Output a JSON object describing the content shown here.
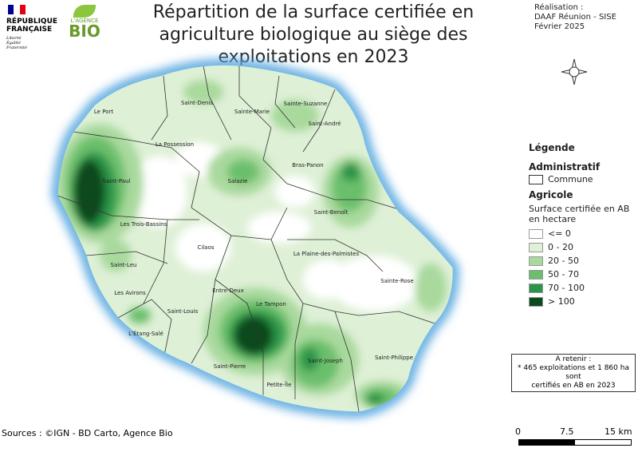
{
  "header": {
    "logo_rf": [
      "RÉPUBLIQUE",
      "FRANÇAISE"
    ],
    "motto": [
      "Liberté",
      "Égalité",
      "Fraternité"
    ],
    "logo_bio": [
      "L'AGENCE",
      "BIO"
    ],
    "title": "Répartition de la surface certifiée en agriculture biologique au siège des exploitations en 2023",
    "credits": [
      "Réalisation :",
      "DAAF Réunion - SISE",
      "Février 2025"
    ]
  },
  "map": {
    "communes": [
      "Saint-Denis",
      "Sainte-Marie",
      "Sainte-Suzanne",
      "Le Port",
      "Saint-André",
      "La Possession",
      "Bras-Panon",
      "Saint-Paul",
      "Salazie",
      "Saint-Benoît",
      "Les Trois-Bassins",
      "Cilaos",
      "La Plaine-des-Palmistes",
      "Saint-Leu",
      "Sainte-Rose",
      "Les Avirons",
      "Entre-Deux",
      "Le Tampon",
      "Saint-Louis",
      "L'Étang-Salé",
      "Saint-Pierre",
      "Saint-Joseph",
      "Saint-Philippe",
      "Petite-Île"
    ]
  },
  "legend": {
    "title": "Légende",
    "admin_heading": "Administratif",
    "admin_item": "Commune",
    "agri_heading": "Agricole",
    "subtitle": [
      "Surface certifiée en AB",
      "en hectare"
    ],
    "classes": [
      {
        "label": "<= 0",
        "color": "#ffffff"
      },
      {
        "label": "0 - 20",
        "color": "#def0d6"
      },
      {
        "label": "20 - 50",
        "color": "#a9d99d"
      },
      {
        "label": "50 - 70",
        "color": "#6abf6c"
      },
      {
        "label": "70 - 100",
        "color": "#2b9446"
      },
      {
        "label": "> 100",
        "color": "#0a4a1c"
      }
    ]
  },
  "note": {
    "lines": [
      "A retenir :",
      "* 465 exploitations et 1 860 ha sont",
      "certifiés en AB en 2023"
    ]
  },
  "sources": "Sources : ©IGN - BD Carto, Agence Bio",
  "scale": {
    "labels": [
      "0",
      "7.5",
      "15 km"
    ]
  }
}
